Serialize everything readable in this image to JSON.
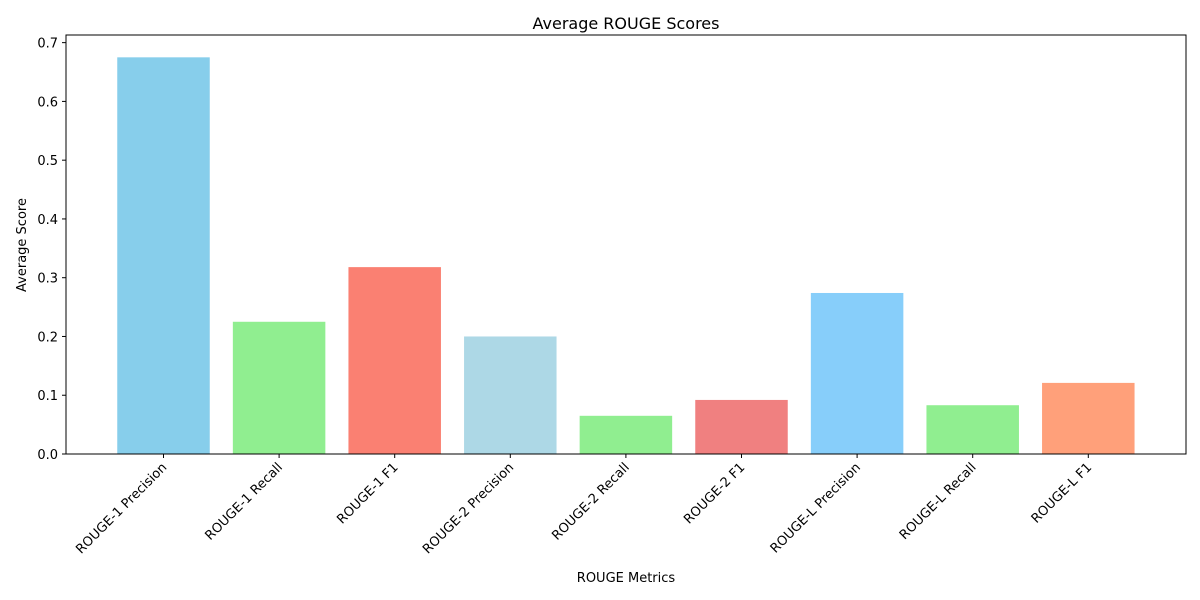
{
  "chart_data": {
    "type": "bar",
    "title": "Average ROUGE Scores",
    "xlabel": "ROUGE Metrics",
    "ylabel": "Average Score",
    "categories": [
      "ROUGE-1 Precision",
      "ROUGE-1 Recall",
      "ROUGE-1 F1",
      "ROUGE-2 Precision",
      "ROUGE-2 Recall",
      "ROUGE-2 F1",
      "ROUGE-L Precision",
      "ROUGE-L Recall",
      "ROUGE-L F1"
    ],
    "values": [
      0.675,
      0.225,
      0.318,
      0.2,
      0.065,
      0.092,
      0.274,
      0.083,
      0.121
    ],
    "colors": [
      "#87ceeb",
      "#90ee90",
      "#fa8072",
      "#add8e6",
      "#90ee90",
      "#f08080",
      "#87cefa",
      "#90ee90",
      "#ffa07a"
    ],
    "ylim": [
      0,
      0.7
    ],
    "yticks": [
      "0.0",
      "0.1",
      "0.2",
      "0.3",
      "0.4",
      "0.5",
      "0.6",
      "0.7"
    ],
    "grid": false,
    "legend": false
  }
}
